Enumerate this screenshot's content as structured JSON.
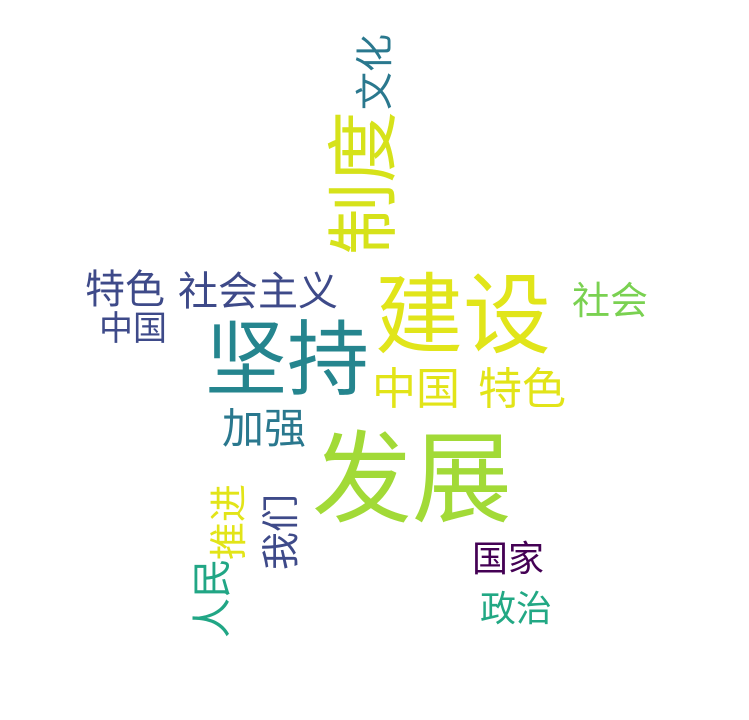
{
  "words": [
    {
      "text": "文化",
      "color": "#2a788e"
    },
    {
      "text": "制度",
      "color": "#d6e21a"
    },
    {
      "text": "特色",
      "color": "#3e4a89"
    },
    {
      "text": "社会主义",
      "color": "#3e4a89"
    },
    {
      "text": "建设",
      "color": "#e1e51a"
    },
    {
      "text": "社会",
      "color": "#7ad151"
    },
    {
      "text": "中国",
      "color": "#3e4a89"
    },
    {
      "text": "坚持",
      "color": "#25858e"
    },
    {
      "text": "中国",
      "color": "#e2e418"
    },
    {
      "text": "特色",
      "color": "#e2e418"
    },
    {
      "text": "加强",
      "color": "#2a788e"
    },
    {
      "text": "发展",
      "color": "#a2da37"
    },
    {
      "text": "推进",
      "color": "#e2e418"
    },
    {
      "text": "我们",
      "color": "#3e4a89"
    },
    {
      "text": "国家",
      "color": "#440154"
    },
    {
      "text": "人民",
      "color": "#21a685"
    },
    {
      "text": "政治",
      "color": "#22a884"
    }
  ]
}
